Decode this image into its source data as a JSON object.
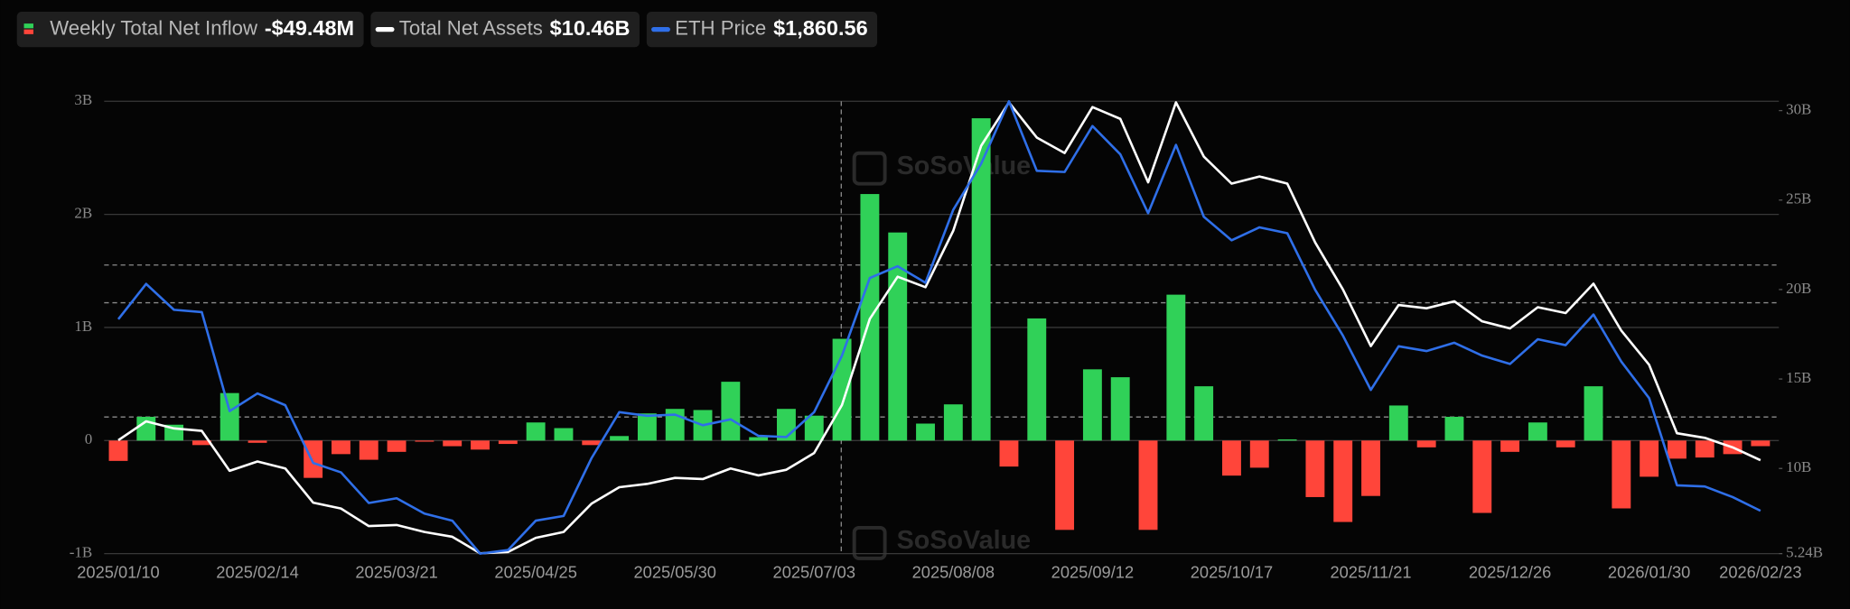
{
  "chart_data": {
    "type": "bar",
    "watermark": "SoSoValue",
    "categories": [
      "2025/01/10",
      null,
      null,
      null,
      null,
      "2025/02/14",
      null,
      null,
      null,
      null,
      "2025/03/21",
      null,
      null,
      null,
      null,
      "2025/04/25",
      null,
      null,
      null,
      null,
      "2025/05/30",
      null,
      null,
      null,
      null,
      "2025/07/03",
      null,
      null,
      null,
      null,
      "2025/08/08",
      null,
      null,
      null,
      null,
      "2025/09/12",
      null,
      null,
      null,
      null,
      "2025/10/17",
      null,
      null,
      null,
      null,
      "2025/11/21",
      null,
      null,
      null,
      null,
      "2025/12/26",
      null,
      null,
      null,
      null,
      "2026/01/30",
      null,
      null,
      null,
      "2026/02/23"
    ],
    "ylim": [
      -1,
      3
    ],
    "yticks": [
      {
        "value": -1,
        "label": "-1B"
      },
      0,
      {
        "value": 1,
        "label": "1B"
      },
      {
        "value": 2,
        "label": "2B"
      },
      {
        "value": 3,
        "label": "3B"
      }
    ],
    "y2lim": [
      5.24,
      30.52
    ],
    "y2ticks": [
      {
        "value": 5.24,
        "label": "5.24B"
      },
      {
        "value": 10,
        "label": "10B"
      },
      {
        "value": 15,
        "label": "15B"
      },
      {
        "value": 20,
        "label": "20B"
      },
      {
        "value": 25,
        "label": "25B"
      },
      {
        "value": 30,
        "label": "30B"
      }
    ],
    "y3lim": [
      1500,
      5300
    ],
    "grid": true,
    "series": [
      {
        "name": "Weekly Total Net Inflow",
        "type": "bar",
        "axis": "y",
        "color": "#30d158",
        "negative_color": "#ff453a",
        "legend_value": "-$49.48M",
        "values": [
          -0.18,
          0.21,
          0.14,
          -0.04,
          0.42,
          -0.02,
          0,
          -0.33,
          -0.12,
          -0.17,
          -0.1,
          -0.01,
          -0.05,
          -0.08,
          -0.03,
          0.16,
          0.11,
          -0.04,
          0.04,
          0.24,
          0.28,
          0.27,
          0.52,
          0.03,
          0.28,
          0.22,
          0.9,
          2.18,
          1.84,
          0.15,
          0.32,
          2.85,
          -0.23,
          1.08,
          -0.79,
          0.63,
          0.56,
          -0.79,
          1.29,
          0.48,
          -0.31,
          -0.24,
          0.01,
          -0.5,
          -0.72,
          -0.49,
          0.31,
          -0.06,
          0.21,
          -0.64,
          -0.1,
          0.16,
          -0.06,
          0.48,
          -0.6,
          -0.32,
          -0.16,
          -0.15,
          -0.12,
          -0.04948
        ]
      },
      {
        "name": "Total Net Assets",
        "type": "line",
        "axis": "y2",
        "color": "#ffffff",
        "legend_value": "$10.46B",
        "values": [
          11.58,
          12.63,
          12.24,
          12.1,
          9.87,
          10.39,
          10.0,
          8.09,
          7.76,
          6.78,
          6.84,
          6.45,
          6.18,
          5.26,
          5.33,
          6.12,
          6.45,
          8.03,
          8.95,
          9.14,
          9.47,
          9.41,
          10.0,
          9.61,
          9.93,
          10.86,
          13.55,
          18.36,
          20.72,
          20.13,
          23.29,
          28.03,
          30.46,
          28.49,
          27.63,
          30.2,
          29.54,
          25.99,
          30.46,
          27.43,
          25.92,
          26.32,
          25.92,
          22.63,
          20.0,
          16.84,
          19.14,
          18.95,
          19.34,
          18.22,
          17.83,
          19.01,
          18.68,
          20.33,
          17.7,
          15.79,
          11.97,
          11.71,
          11.18,
          10.46
        ]
      },
      {
        "name": "ETH Price",
        "type": "line",
        "axis": "y3",
        "color": "#2f6fe8",
        "legend_value": "$1,860.56",
        "values": [
          3469,
          3766,
          3548,
          3529,
          2697,
          2846,
          2747,
          2262,
          2183,
          1926,
          1965,
          1836,
          1777,
          1500,
          1530,
          1777,
          1817,
          2302,
          2688,
          2658,
          2668,
          2579,
          2628,
          2490,
          2480,
          2688,
          3163,
          3816,
          3915,
          3776,
          4390,
          4776,
          5300,
          4716,
          4706,
          5092,
          4855,
          4360,
          4934,
          4330,
          4132,
          4241,
          4192,
          3717,
          3331,
          2876,
          3242,
          3202,
          3271,
          3163,
          3093,
          3301,
          3252,
          3509,
          3113,
          2806,
          2074,
          2064,
          1975,
          1860.56
        ]
      }
    ]
  }
}
